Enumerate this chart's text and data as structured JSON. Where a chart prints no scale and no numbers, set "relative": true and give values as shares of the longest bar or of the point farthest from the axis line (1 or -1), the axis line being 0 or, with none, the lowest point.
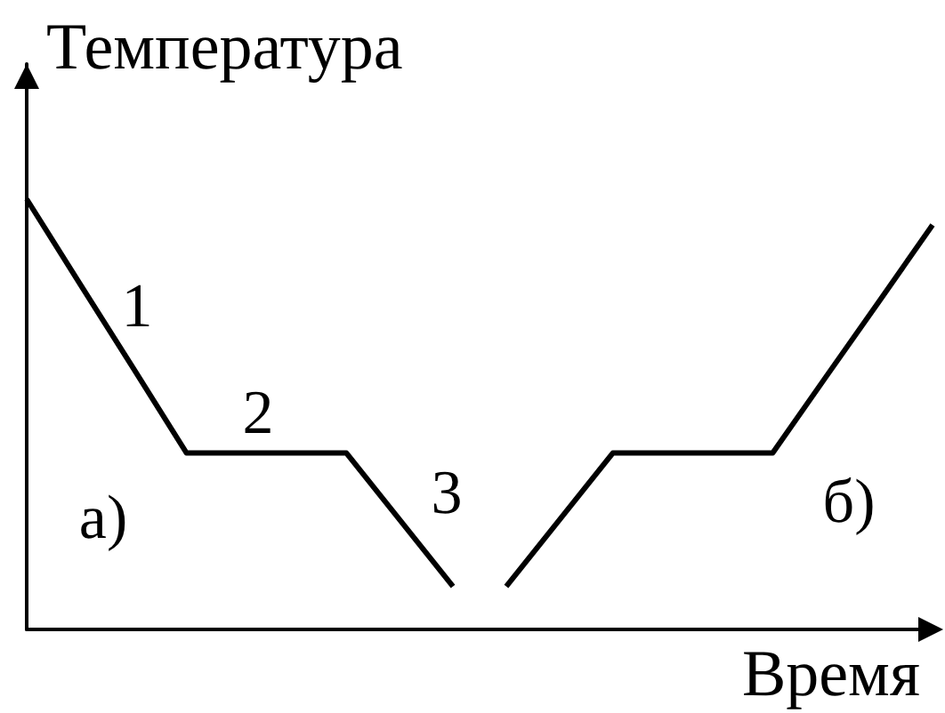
{
  "chart_data": {
    "type": "line",
    "relative": true,
    "xlabel": "Время",
    "ylabel": "Температура",
    "annotations": [
      "1",
      "2",
      "3",
      "а)",
      "б)"
    ],
    "categories": [
      null,
      null,
      null,
      null,
      null,
      null,
      null,
      null,
      null,
      null,
      null,
      null,
      null,
      null,
      null,
      null,
      null,
      null
    ],
    "series": [
      {
        "color": "#000000",
        "values": [
          1,
          0.803,
          0.607,
          0.41,
          0.41,
          0.41,
          0.41,
          0.255,
          0.1,
          null,
          null,
          null,
          null,
          null,
          null,
          null,
          null,
          null
        ]
      },
      {
        "color": "#000000",
        "values": [
          null,
          null,
          null,
          null,
          null,
          null,
          null,
          null,
          null,
          0.1,
          0.255,
          0.41,
          0.41,
          0.41,
          0.41,
          0.587,
          0.763,
          0.94
        ]
      }
    ],
    "marker": "none",
    "line_style": "solid",
    "grid": false
  }
}
